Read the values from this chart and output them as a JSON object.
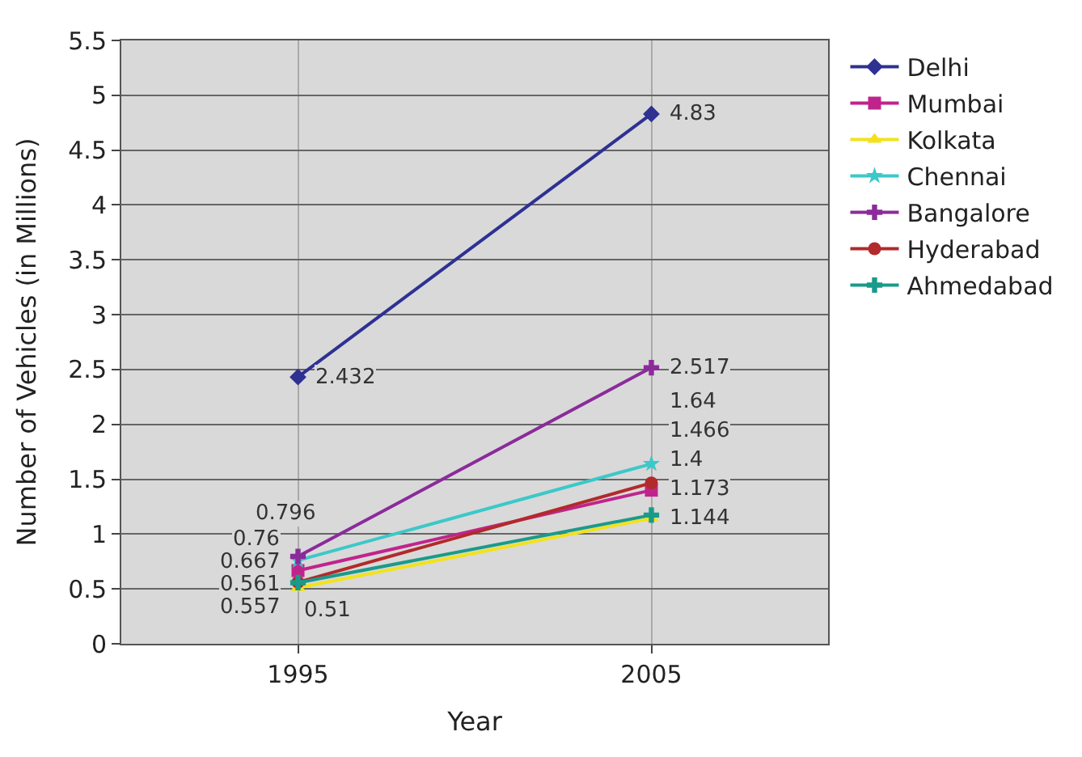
{
  "chart_data": {
    "type": "line",
    "xlabel": "Year",
    "ylabel": "Number of Vehicles (in Millions)",
    "categories": [
      "1995",
      "2005"
    ],
    "series": [
      {
        "name": "Delhi",
        "color": "#2e3192",
        "marker": "diamond",
        "values": [
          2.432,
          4.83
        ]
      },
      {
        "name": "Mumbai",
        "color": "#c0248c",
        "marker": "square",
        "values": [
          0.667,
          1.4
        ]
      },
      {
        "name": "Kolkata",
        "color": "#f2e21c",
        "marker": "triangle",
        "values": [
          0.51,
          1.144
        ]
      },
      {
        "name": "Chennai",
        "color": "#3cc8c8",
        "marker": "star",
        "values": [
          0.76,
          1.64
        ]
      },
      {
        "name": "Bangalore",
        "color": "#8b2b9b",
        "marker": "cross",
        "values": [
          0.796,
          2.517
        ]
      },
      {
        "name": "Hyderabad",
        "color": "#b22a2a",
        "marker": "circle",
        "values": [
          0.561,
          1.466
        ]
      },
      {
        "name": "Ahmedabad",
        "color": "#1a9a8a",
        "marker": "cross",
        "values": [
          0.557,
          1.173
        ]
      }
    ],
    "ylim": [
      0,
      5.5
    ],
    "yticks": [
      0,
      0.5,
      1,
      1.5,
      2,
      2.5,
      3,
      3.5,
      4,
      4.5,
      5,
      5.5
    ],
    "grid": true,
    "legend": "right",
    "data_labels": true,
    "line_style": "solid"
  }
}
